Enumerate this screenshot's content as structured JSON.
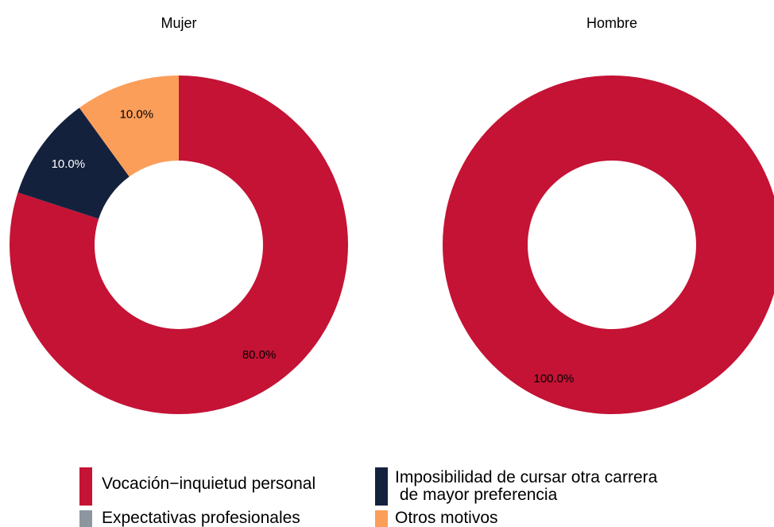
{
  "chart_data": [
    {
      "type": "donut",
      "title": "Mujer",
      "categories": [
        "Vocación−inquietud personal",
        "Imposibilidad de cursar otra carrera\n de mayor preferencia",
        "Expectativas profesionales",
        "Otros motivos"
      ],
      "values": [
        80,
        10,
        0,
        10
      ],
      "value_labels": [
        "80.0%",
        "10.0%",
        null,
        "10.0%"
      ],
      "colors": [
        "#c41335",
        "#14213d",
        "#8d969e",
        "#fb9e5a"
      ]
    },
    {
      "type": "donut",
      "title": "Hombre",
      "categories": [
        "Vocación−inquietud personal",
        "Imposibilidad de cursar otra carrera\n de mayor preferencia",
        "Expectativas profesionales",
        "Otros motivos"
      ],
      "values": [
        100,
        0,
        0,
        0
      ],
      "value_labels": [
        "100.0%",
        null,
        null,
        null
      ],
      "colors": [
        "#c41335",
        "#14213d",
        "#8d969e",
        "#fb9e5a"
      ]
    }
  ]
}
